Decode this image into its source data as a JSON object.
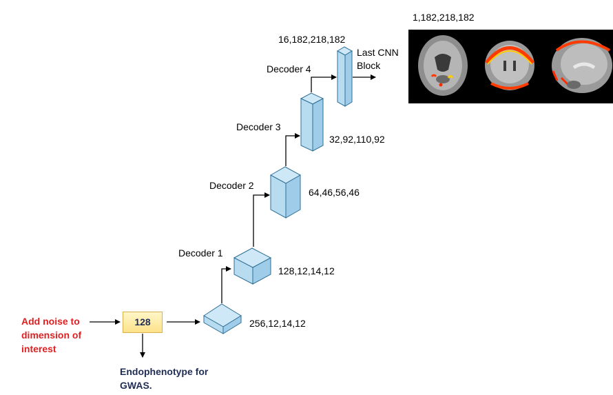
{
  "input": {
    "noise_label": "Add noise to dimension of interest",
    "latent_value": "128",
    "output_label": "Endophenotype for GWAS."
  },
  "decoders": [
    {
      "label": "",
      "dims": "256,12,14,12"
    },
    {
      "label": "Decoder 1",
      "dims": "128,12,14,12"
    },
    {
      "label": "Decoder 2",
      "dims": "64,46,56,46"
    },
    {
      "label": "Decoder 3",
      "dims": "32,92,110,92"
    },
    {
      "label": "Decoder 4",
      "dims": "16,182,218,182"
    }
  ],
  "last_block": {
    "label": "Last CNN Block"
  },
  "output_image": {
    "dims": "1,182,218,182",
    "views": [
      "axial",
      "coronal",
      "sagittal"
    ]
  },
  "colors": {
    "cube_face": "#b7dcf0",
    "cube_top": "#cfe8f7",
    "cube_side": "#9fcce8",
    "cube_edge": "#2e6f97",
    "noise_text": "#e02020",
    "output_text": "#1f2d56"
  }
}
